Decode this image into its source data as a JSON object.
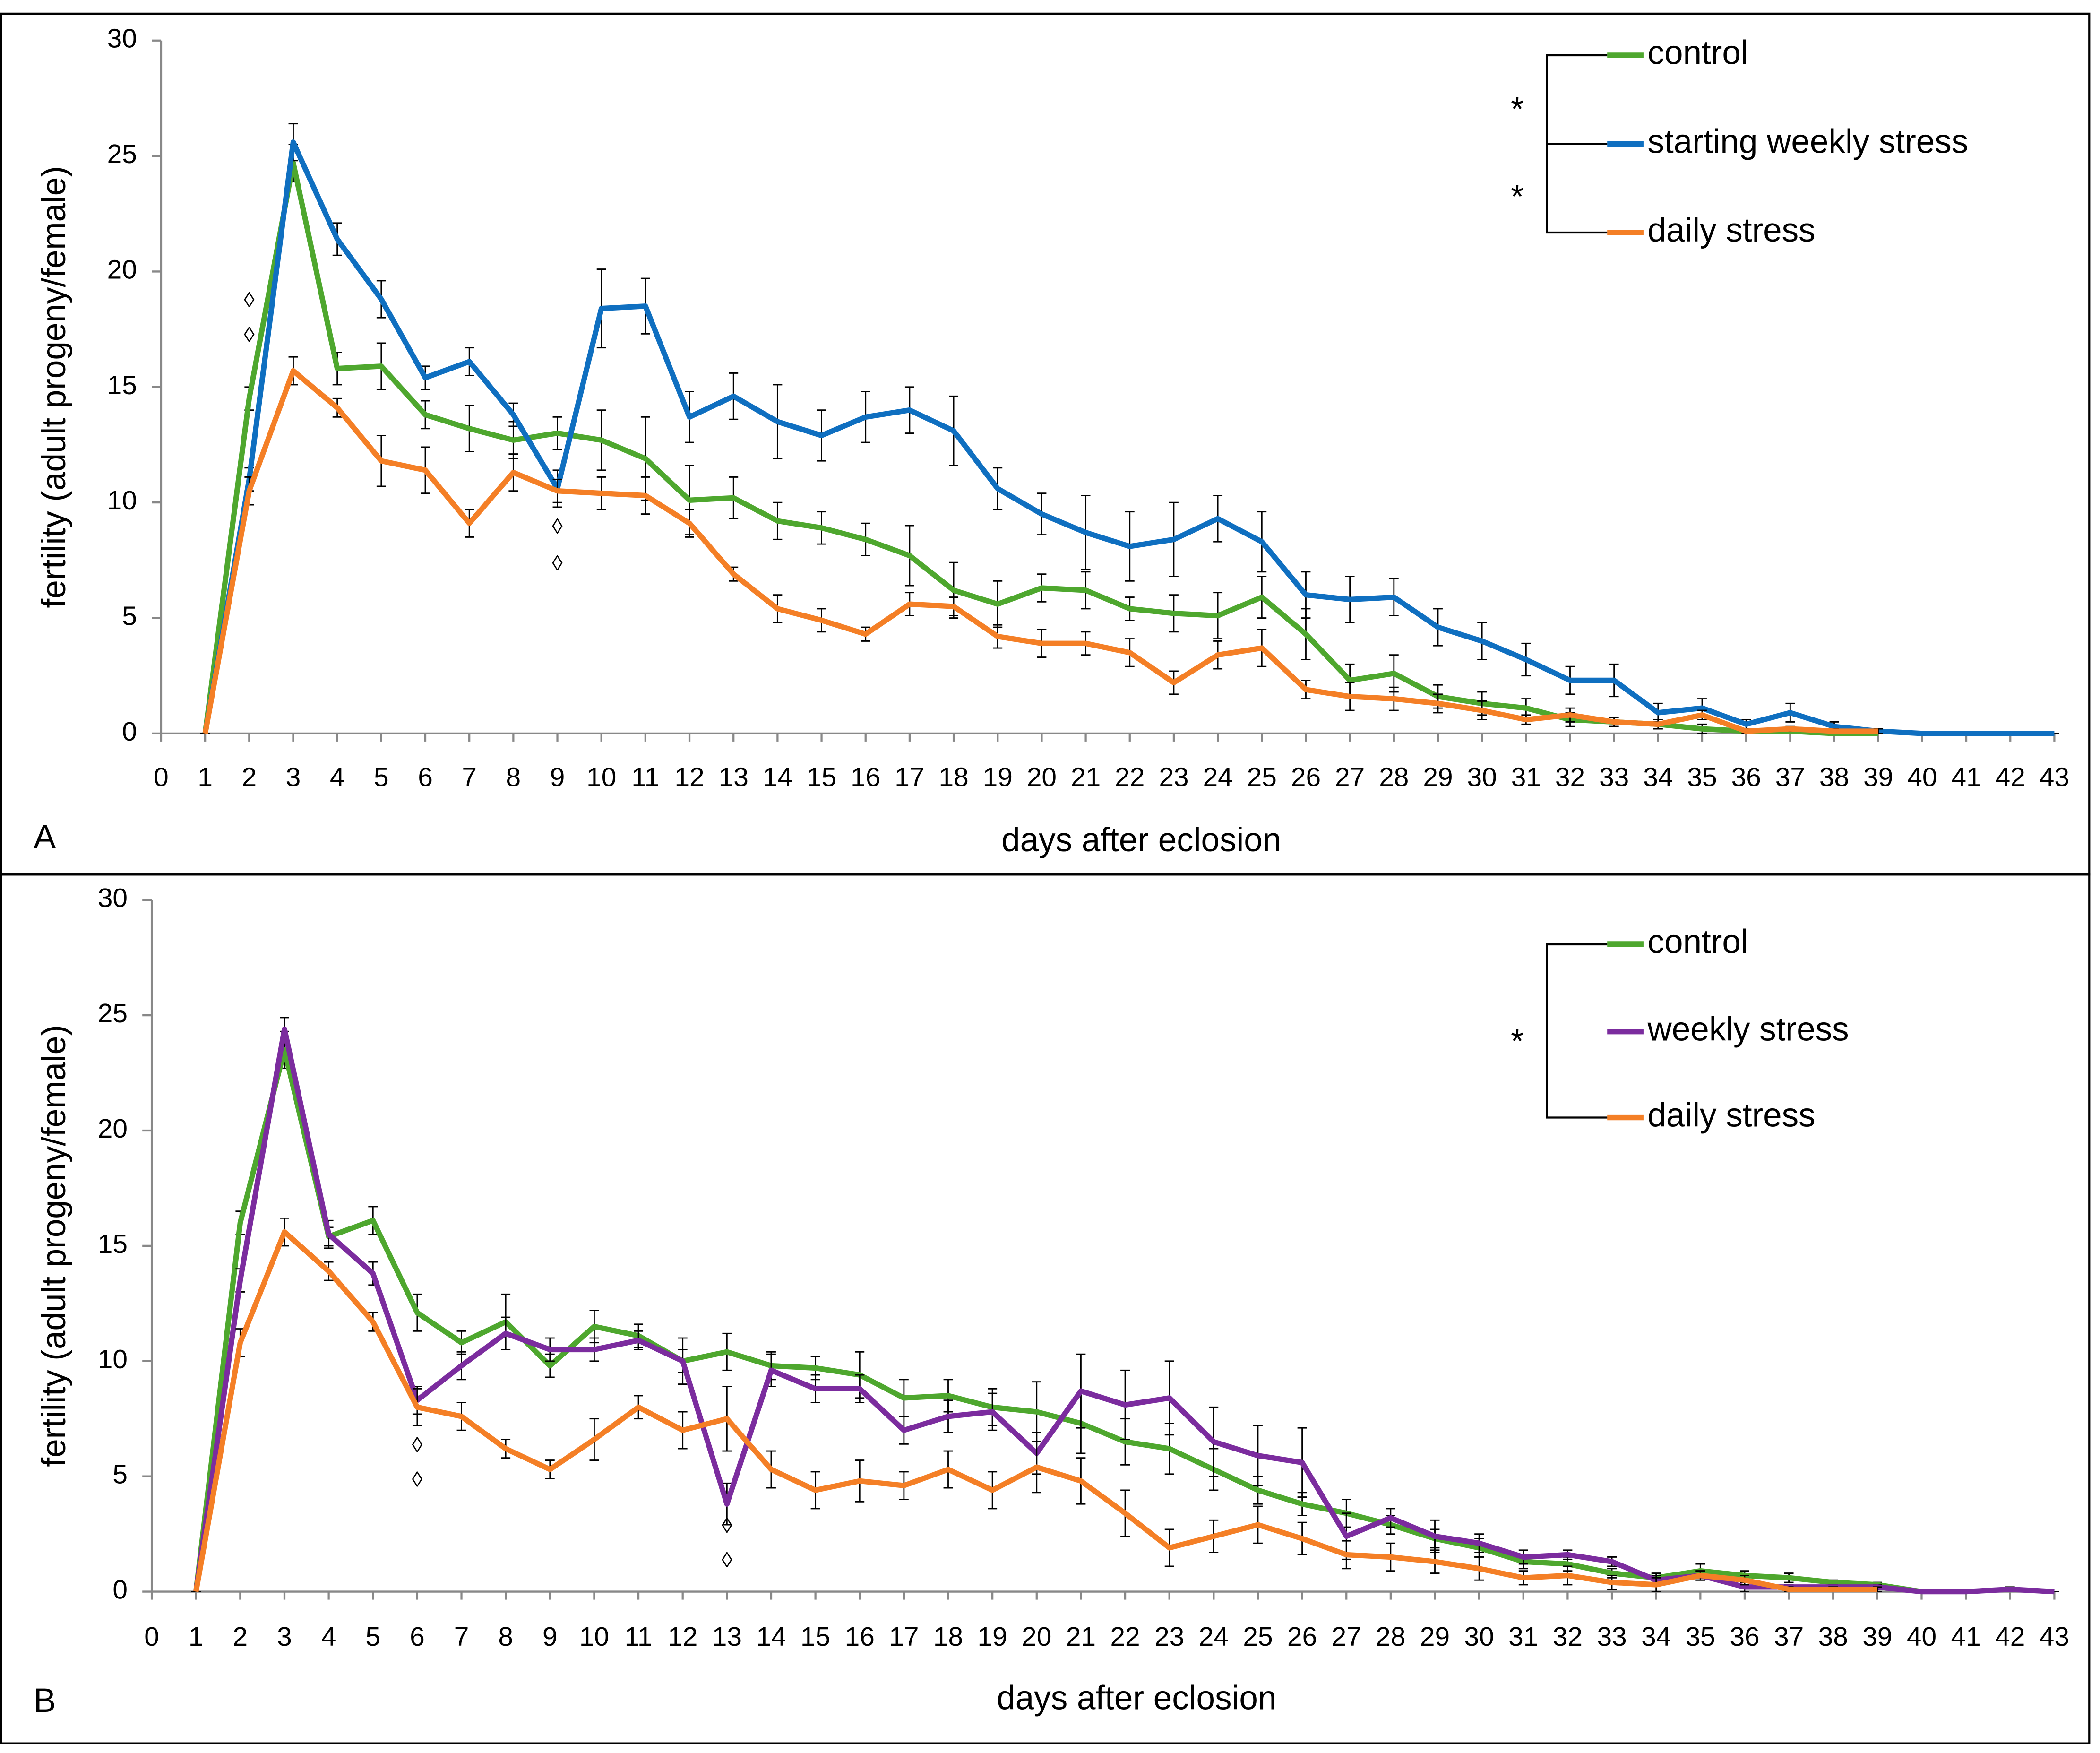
{
  "chart_data": [
    {
      "type": "line",
      "panel_label": "A",
      "x_label": "days after eclosion",
      "y_label": "fertility (adult progeny/female)",
      "x": [
        1,
        2,
        3,
        4,
        5,
        6,
        7,
        8,
        9,
        10,
        11,
        12,
        13,
        14,
        15,
        16,
        17,
        18,
        19,
        20,
        21,
        22,
        23,
        24,
        25,
        26,
        27,
        28,
        29,
        30,
        31,
        32,
        33,
        34,
        35,
        36,
        37,
        38,
        39,
        40,
        41,
        42,
        43
      ],
      "xlim": [
        0,
        43
      ],
      "xticks": [
        0,
        1,
        2,
        3,
        4,
        5,
        6,
        7,
        8,
        9,
        10,
        11,
        12,
        13,
        14,
        15,
        16,
        17,
        18,
        19,
        20,
        21,
        22,
        23,
        24,
        25,
        26,
        27,
        28,
        29,
        30,
        31,
        32,
        33,
        34,
        35,
        36,
        37,
        38,
        39,
        40,
        41,
        42,
        43
      ],
      "ylim": [
        0,
        30
      ],
      "yticks": [
        0,
        5,
        10,
        15,
        20,
        25,
        30
      ],
      "series": [
        {
          "name": "control",
          "color": "#4ea72e",
          "values": [
            0,
            14.5,
            24.7,
            15.8,
            15.9,
            13.8,
            13.2,
            12.7,
            13.0,
            12.7,
            11.9,
            10.1,
            10.2,
            9.2,
            8.9,
            8.4,
            7.7,
            6.2,
            5.6,
            6.3,
            6.2,
            5.4,
            5.2,
            5.1,
            5.9,
            4.3,
            2.3,
            2.6,
            1.6,
            1.3,
            1.1,
            0.6,
            0.5,
            0.4,
            0.2,
            0.1,
            0.1,
            0,
            0,
            null,
            null,
            null,
            null
          ],
          "errors": [
            0,
            0.5,
            0.8,
            0.7,
            1.0,
            0.6,
            1.0,
            0.8,
            0.7,
            1.3,
            1.8,
            1.5,
            0.9,
            0.8,
            0.7,
            0.7,
            1.3,
            1.2,
            1.0,
            0.6,
            0.8,
            0.5,
            0.8,
            1.0,
            0.9,
            1.1,
            0.7,
            0.8,
            0.5,
            0.5,
            0.4,
            0.3,
            0.2,
            0.2,
            0.2,
            0.1,
            0.1,
            0,
            0,
            null,
            null,
            null,
            null
          ]
        },
        {
          "name": "starting weekly stress",
          "color": "#0f6fc0",
          "values": [
            0,
            11,
            25.6,
            21.4,
            18.8,
            15.4,
            16.1,
            13.8,
            10.6,
            18.4,
            18.5,
            13.7,
            14.6,
            13.5,
            12.9,
            13.7,
            14.0,
            13.1,
            10.6,
            9.5,
            8.7,
            8.1,
            8.4,
            9.3,
            8.3,
            6.0,
            5.8,
            5.9,
            4.6,
            4.0,
            3.2,
            2.3,
            2.3,
            0.9,
            1.1,
            0.4,
            0.9,
            0.3,
            0.1,
            0,
            0,
            0,
            0
          ],
          "errors": [
            0,
            0.5,
            0.8,
            0.7,
            0.8,
            0.5,
            0.6,
            0.5,
            0.8,
            1.7,
            1.2,
            1.1,
            1.0,
            1.6,
            1.1,
            1.1,
            1.0,
            1.5,
            0.9,
            0.9,
            1.6,
            1.5,
            1.6,
            1.0,
            1.3,
            1.0,
            1.0,
            0.8,
            0.8,
            0.8,
            0.7,
            0.6,
            0.7,
            0.4,
            0.4,
            0.2,
            0.4,
            0.2,
            0.1,
            0,
            0,
            0,
            0
          ]
        },
        {
          "name": "daily stress",
          "color": "#f47f26",
          "values": [
            0,
            10.5,
            15.7,
            14.1,
            11.8,
            11.4,
            9.1,
            11.3,
            10.5,
            10.4,
            10.3,
            9.1,
            6.9,
            5.4,
            4.9,
            4.3,
            5.6,
            5.5,
            4.2,
            3.9,
            3.9,
            3.5,
            2.2,
            3.4,
            3.7,
            1.9,
            1.6,
            1.5,
            1.3,
            1.0,
            0.6,
            0.8,
            0.5,
            0.4,
            0.8,
            0.1,
            0.2,
            0.1,
            0.1,
            null,
            null,
            null,
            null
          ],
          "errors": [
            0,
            0.6,
            0.6,
            0.4,
            1.1,
            1.0,
            0.6,
            0.8,
            0.5,
            0.7,
            0.8,
            0.6,
            0.3,
            0.6,
            0.5,
            0.3,
            0.5,
            0.4,
            0.5,
            0.6,
            0.5,
            0.6,
            0.5,
            0.6,
            0.8,
            0.4,
            0.6,
            0.5,
            0.4,
            0.4,
            0.2,
            0.3,
            0.2,
            0.2,
            0.2,
            0.1,
            0.1,
            0.1,
            0.1,
            null,
            null,
            null,
            null
          ]
        }
      ],
      "significance": [
        "*",
        "*"
      ],
      "markers": [
        {
          "x": 2,
          "y": 18.7,
          "label": "◊"
        },
        {
          "x": 2,
          "y": 17.2,
          "label": "◊"
        },
        {
          "x": 9,
          "y": 8.9,
          "label": "◊"
        },
        {
          "x": 9,
          "y": 7.3,
          "label": "◊"
        }
      ]
    },
    {
      "type": "line",
      "panel_label": "B",
      "x_label": "days after eclosion",
      "y_label": "fertility (adult progeny/female)",
      "x": [
        1,
        2,
        3,
        4,
        5,
        6,
        7,
        8,
        9,
        10,
        11,
        12,
        13,
        14,
        15,
        16,
        17,
        18,
        19,
        20,
        21,
        22,
        23,
        24,
        25,
        26,
        27,
        28,
        29,
        30,
        31,
        32,
        33,
        34,
        35,
        36,
        37,
        38,
        39,
        40,
        41,
        42,
        43
      ],
      "xlim": [
        0,
        43
      ],
      "xticks": [
        0,
        1,
        2,
        3,
        4,
        5,
        6,
        7,
        8,
        9,
        10,
        11,
        12,
        13,
        14,
        15,
        16,
        17,
        18,
        19,
        20,
        21,
        22,
        23,
        24,
        25,
        26,
        27,
        28,
        29,
        30,
        31,
        32,
        33,
        34,
        35,
        36,
        37,
        38,
        39,
        40,
        41,
        42,
        43
      ],
      "ylim": [
        0,
        30
      ],
      "yticks": [
        0,
        5,
        10,
        15,
        20,
        25,
        30
      ],
      "series": [
        {
          "name": "control",
          "color": "#4ea72e",
          "values": [
            0,
            16,
            23.5,
            15.4,
            16.1,
            12.1,
            10.8,
            11.7,
            9.8,
            11.5,
            11.1,
            10.0,
            10.4,
            9.8,
            9.7,
            9.4,
            8.4,
            8.5,
            8.0,
            7.8,
            7.3,
            6.5,
            6.2,
            5.3,
            4.4,
            3.8,
            3.4,
            2.9,
            2.3,
            1.9,
            1.3,
            1.2,
            0.8,
            0.6,
            0.9,
            0.7,
            0.6,
            0.4,
            0.3,
            0,
            null,
            null,
            null
          ],
          "errors": [
            0,
            0.5,
            0.8,
            0.4,
            0.6,
            0.8,
            0.5,
            1.2,
            0.5,
            0.7,
            0.5,
            1.0,
            0.8,
            0.6,
            0.5,
            1.0,
            0.8,
            0.7,
            0.8,
            1.3,
            1.3,
            1.0,
            1.1,
            0.9,
            0.6,
            0.5,
            0.6,
            0.4,
            0.4,
            0.4,
            0.3,
            0.3,
            0.2,
            0.2,
            0.3,
            0.2,
            0.2,
            0.1,
            0.1,
            0,
            null,
            null,
            null
          ]
        },
        {
          "name": "weekly stress",
          "color": "#7b2c9e",
          "values": [
            0,
            13.5,
            24.4,
            15.5,
            13.8,
            8.3,
            9.8,
            11.2,
            10.5,
            10.5,
            10.9,
            10.0,
            3.8,
            9.6,
            8.8,
            8.8,
            7.0,
            7.6,
            7.8,
            6.0,
            8.7,
            8.1,
            8.4,
            6.5,
            5.9,
            5.6,
            2.4,
            3.2,
            2.4,
            2.1,
            1.5,
            1.6,
            1.3,
            0.5,
            0.7,
            0.2,
            0.2,
            0.2,
            0.2,
            0,
            0,
            0.1,
            0
          ],
          "errors": [
            0,
            0.5,
            0.5,
            0.6,
            0.5,
            0.6,
            0.6,
            0.7,
            0.5,
            0.5,
            0.4,
            0.5,
            0.9,
            0.7,
            0.6,
            0.6,
            0.6,
            0.7,
            0.8,
            0.9,
            1.6,
            1.5,
            1.6,
            1.5,
            1.3,
            1.5,
            1.0,
            0.4,
            0.7,
            0.4,
            0.3,
            0.2,
            0.2,
            0.2,
            0.2,
            0.2,
            0.1,
            0.1,
            0.1,
            0,
            0,
            0.1,
            0
          ]
        },
        {
          "name": "daily stress",
          "color": "#f47f26",
          "values": [
            0,
            10.8,
            15.6,
            13.9,
            11.7,
            8.0,
            7.6,
            6.2,
            5.3,
            6.6,
            8.0,
            7.0,
            7.5,
            5.3,
            4.4,
            4.8,
            4.6,
            5.3,
            4.4,
            5.4,
            4.8,
            3.4,
            1.9,
            2.4,
            2.9,
            2.3,
            1.6,
            1.5,
            1.3,
            1.0,
            0.6,
            0.7,
            0.4,
            0.3,
            0.7,
            0.5,
            0.1,
            0.1,
            0.1,
            null,
            null,
            null,
            null
          ],
          "errors": [
            0,
            0.6,
            0.6,
            0.4,
            0.4,
            0.8,
            0.6,
            0.4,
            0.4,
            0.9,
            0.5,
            0.8,
            1.4,
            0.8,
            0.8,
            0.9,
            0.6,
            0.8,
            0.8,
            1.1,
            1.0,
            1.0,
            0.8,
            0.7,
            0.8,
            0.7,
            0.6,
            0.6,
            0.5,
            0.5,
            0.3,
            0.4,
            0.3,
            0.3,
            0.2,
            0.2,
            0.1,
            0.1,
            0.1,
            null,
            null,
            null,
            null
          ]
        }
      ],
      "significance": [
        "*"
      ],
      "markers": [
        {
          "x": 6,
          "y": 6.3,
          "label": "◊"
        },
        {
          "x": 6,
          "y": 4.8,
          "label": "◊"
        },
        {
          "x": 13,
          "y": 2.8,
          "label": "◊"
        },
        {
          "x": 13,
          "y": 1.3,
          "label": "◊"
        }
      ]
    }
  ]
}
